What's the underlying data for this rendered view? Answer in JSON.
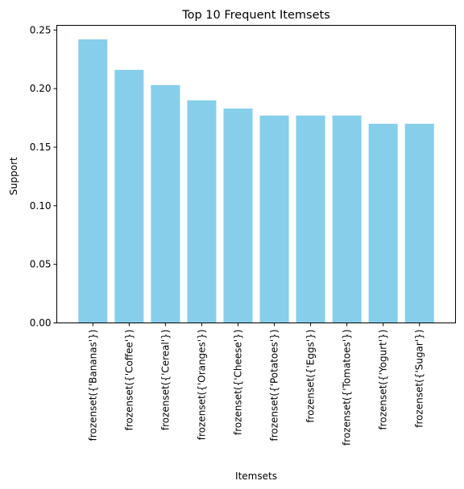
{
  "chart_data": {
    "type": "bar",
    "title": "Top 10 Frequent Itemsets",
    "xlabel": "Itemsets",
    "ylabel": "Support",
    "categories": [
      "frozenset({'Bananas'})",
      "frozenset({'Coffee'})",
      "frozenset({'Cereal'})",
      "frozenset({'Oranges'})",
      "frozenset({'Cheese'})",
      "frozenset({'Potatoes'})",
      "frozenset({'Eggs'})",
      "frozenset({'Tomatoes'})",
      "frozenset({'Yogurt'})",
      "frozenset({'Sugar'})"
    ],
    "values": [
      0.242,
      0.216,
      0.203,
      0.19,
      0.183,
      0.177,
      0.177,
      0.177,
      0.17,
      0.17
    ],
    "ylim": [
      0,
      0.254
    ],
    "yticks": [
      "0.00",
      "0.05",
      "0.10",
      "0.15",
      "0.20",
      "0.25"
    ],
    "grid": false,
    "bar_color": "#87ceeb"
  }
}
